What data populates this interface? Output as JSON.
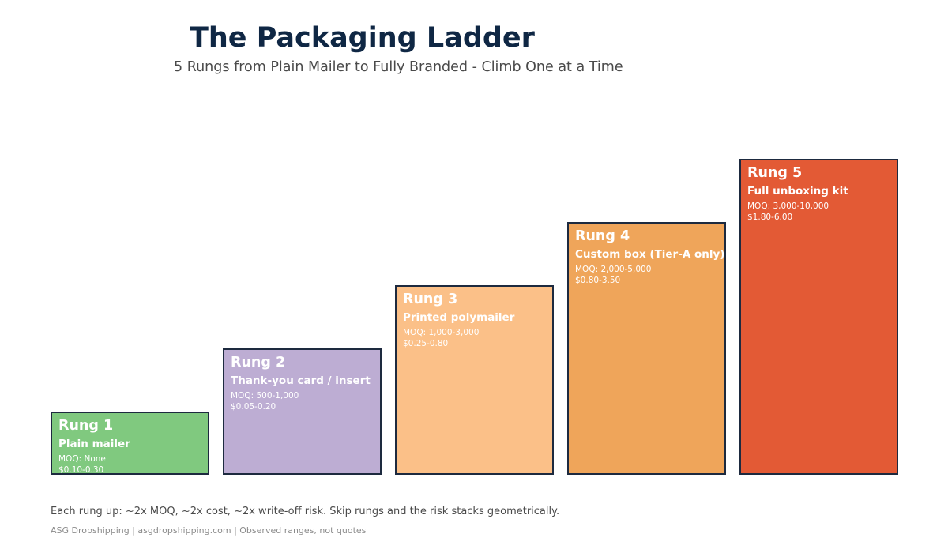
{
  "header": {
    "title": "The Packaging Ladder",
    "subtitle": "5 Rungs from Plain Mailer to Fully Branded - Climb One at a Time"
  },
  "rungs": [
    {
      "label": "Rung 1",
      "name": "Plain mailer",
      "moq": "MOQ: None",
      "cost": "$0.10-0.30",
      "level": 1,
      "color": "#80c97f"
    },
    {
      "label": "Rung 2",
      "name": "Thank-you card / insert",
      "moq": "MOQ: 500-1,000",
      "cost": "$0.05-0.20",
      "level": 2,
      "color": "#bdadd3"
    },
    {
      "label": "Rung 3",
      "name": "Printed polymailer",
      "moq": "MOQ: 1,000-3,000",
      "cost": "$0.25-0.80",
      "level": 3,
      "color": "#fbc088"
    },
    {
      "label": "Rung 4",
      "name": "Custom box (Tier-A only)",
      "moq": "MOQ: 2,000-5,000",
      "cost": "$0.80-3.50",
      "level": 4,
      "color": "#efa55a"
    },
    {
      "label": "Rung 5",
      "name": "Full unboxing kit",
      "moq": "MOQ: 3,000-10,000",
      "cost": "$1.80-6.00",
      "level": 5,
      "color": "#e35a35"
    }
  ],
  "footer": {
    "note": "Each rung up: ~2x MOQ, ~2x cost, ~2x write-off risk. Skip rungs and the risk stacks geometrically.",
    "source": "ASG Dropshipping | asgdropshipping.com | Observed ranges, not quotes"
  }
}
